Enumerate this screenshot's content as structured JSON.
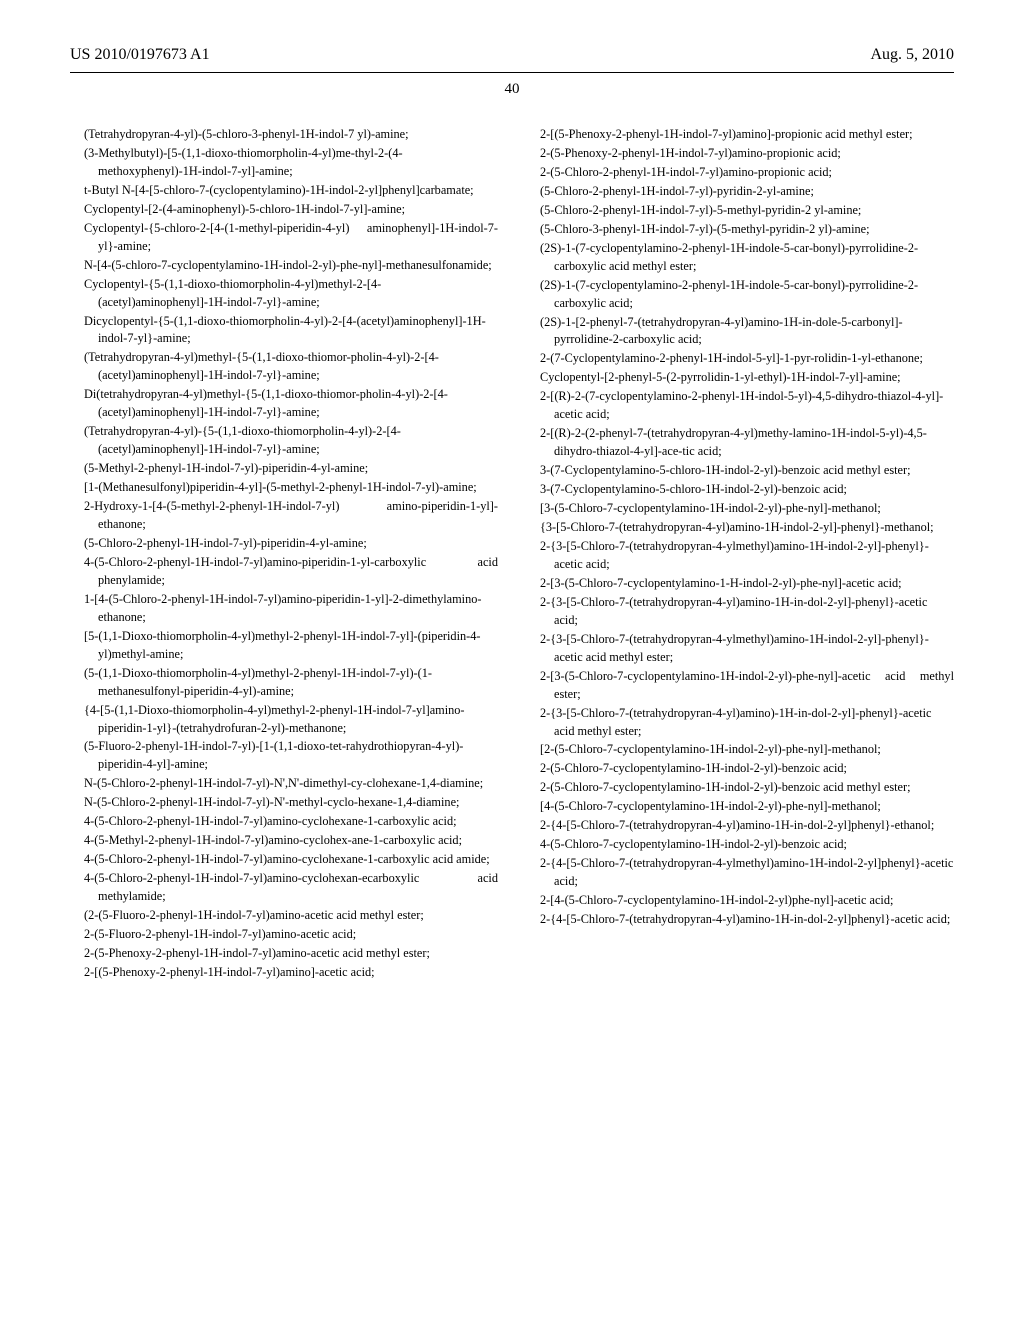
{
  "header": {
    "publication_number": "US 2010/0197673 A1",
    "date": "Aug. 5, 2010",
    "page_number": "40"
  },
  "columns": {
    "left": [
      "(Tetrahydropyran-4-yl)-(5-chloro-3-phenyl-1H-indol-7 yl)-amine;",
      "(3-Methylbutyl)-[5-(1,1-dioxo-thiomorpholin-4-yl)me-thyl-2-(4-methoxyphenyl)-1H-indol-7-yl]-amine;",
      "t-Butyl N-[4-[5-chloro-7-(cyclopentylamino)-1H-indol-2-yl]phenyl]carbamate;",
      "Cyclopentyl-[2-(4-aminophenyl)-5-chloro-1H-indol-7-yl]-amine;",
      "Cyclopentyl-{5-chloro-2-[4-(1-methyl-piperidin-4-yl) aminophenyl]-1H-indol-7-yl}-amine;",
      "N-[4-(5-chloro-7-cyclopentylamino-1H-indol-2-yl)-phe-nyl]-methanesulfonamide;",
      "Cyclopentyl-{5-(1,1-dioxo-thiomorpholin-4-yl)methyl-2-[4-(acetyl)aminophenyl]-1H-indol-7-yl}-amine;",
      "Dicyclopentyl-{5-(1,1-dioxo-thiomorpholin-4-yl)-2-[4-(acetyl)aminophenyl]-1H-indol-7-yl}-amine;",
      "(Tetrahydropyran-4-yl)methyl-{5-(1,1-dioxo-thiomor-pholin-4-yl)-2-[4-(acetyl)aminophenyl]-1H-indol-7-yl}-amine;",
      "Di(tetrahydropyran-4-yl)methyl-{5-(1,1-dioxo-thiomor-pholin-4-yl)-2-[4-(acetyl)aminophenyl]-1H-indol-7-yl}-amine;",
      "(Tetrahydropyran-4-yl)-{5-(1,1-dioxo-thiomorpholin-4-yl)-2-[4-(acetyl)aminophenyl]-1H-indol-7-yl}-amine;",
      "(5-Methyl-2-phenyl-1H-indol-7-yl)-piperidin-4-yl-amine;",
      "[1-(Methanesulfonyl)piperidin-4-yl]-(5-methyl-2-phenyl-1H-indol-7-yl)-amine;",
      "2-Hydroxy-1-[4-(5-methyl-2-phenyl-1H-indol-7-yl) amino-piperidin-1-yl]-ethanone;",
      "(5-Chloro-2-phenyl-1H-indol-7-yl)-piperidin-4-yl-amine;",
      "4-(5-Chloro-2-phenyl-1H-indol-7-yl)amino-piperidin-1-yl-carboxylic acid phenylamide;",
      "1-[4-(5-Chloro-2-phenyl-1H-indol-7-yl)amino-piperidin-1-yl]-2-dimethylamino-ethanone;",
      "[5-(1,1-Dioxo-thiomorpholin-4-yl)methyl-2-phenyl-1H-indol-7-yl]-(piperidin-4-yl)methyl-amine;",
      "(5-(1,1-Dioxo-thiomorpholin-4-yl)methyl-2-phenyl-1H-indol-7-yl)-(1-methanesulfonyl-piperidin-4-yl)-amine;",
      "{4-[5-(1,1-Dioxo-thiomorpholin-4-yl)methyl-2-phenyl-1H-indol-7-yl]amino-piperidin-1-yl}-(tetrahydrofuran-2-yl)-methanone;",
      "(5-Fluoro-2-phenyl-1H-indol-7-yl)-[1-(1,1-dioxo-tet-rahydrothiopyran-4-yl)-piperidin-4-yl]-amine;",
      "N-(5-Chloro-2-phenyl-1H-indol-7-yl)-N',N'-dimethyl-cy-clohexane-1,4-diamine;",
      "N-(5-Chloro-2-phenyl-1H-indol-7-yl)-N'-methyl-cyclo-hexane-1,4-diamine;",
      "4-(5-Chloro-2-phenyl-1H-indol-7-yl)amino-cyclohexane-1-carboxylic acid;",
      "4-(5-Methyl-2-phenyl-1H-indol-7-yl)amino-cyclohex-ane-1-carboxylic acid;",
      "4-(5-Chloro-2-phenyl-1H-indol-7-yl)amino-cyclohexane-1-carboxylic acid amide;",
      "4-(5-Chloro-2-phenyl-1H-indol-7-yl)amino-cyclohexan-ecarboxylic acid methylamide;",
      "(2-(5-Fluoro-2-phenyl-1H-indol-7-yl)amino-acetic acid methyl ester;",
      "2-(5-Fluoro-2-phenyl-1H-indol-7-yl)amino-acetic acid;",
      "2-(5-Phenoxy-2-phenyl-1H-indol-7-yl)amino-acetic acid methyl ester;",
      "2-[(5-Phenoxy-2-phenyl-1H-indol-7-yl)amino]-acetic acid;"
    ],
    "right": [
      "2-[(5-Phenoxy-2-phenyl-1H-indol-7-yl)amino]-propionic acid methyl ester;",
      "2-(5-Phenoxy-2-phenyl-1H-indol-7-yl)amino-propionic acid;",
      "2-(5-Chloro-2-phenyl-1H-indol-7-yl)amino-propionic acid;",
      "(5-Chloro-2-phenyl-1H-indol-7-yl)-pyridin-2-yl-amine;",
      "(5-Chloro-2-phenyl-1H-indol-7-yl)-5-methyl-pyridin-2 yl-amine;",
      "(5-Chloro-3-phenyl-1H-indol-7-yl)-(5-methyl-pyridin-2 yl)-amine;",
      "(2S)-1-(7-cyclopentylamino-2-phenyl-1H-indole-5-car-bonyl)-pyrrolidine-2-carboxylic acid methyl ester;",
      "(2S)-1-(7-cyclopentylamino-2-phenyl-1H-indole-5-car-bonyl)-pyrrolidine-2-carboxylic acid;",
      "(2S)-1-[2-phenyl-7-(tetrahydropyran-4-yl)amino-1H-in-dole-5-carbonyl]-pyrrolidine-2-carboxylic acid;",
      "2-(7-Cyclopentylamino-2-phenyl-1H-indol-5-yl]-1-pyr-rolidin-1-yl-ethanone;",
      "Cyclopentyl-[2-phenyl-5-(2-pyrrolidin-1-yl-ethyl)-1H-indol-7-yl]-amine;",
      "2-[(R)-2-(7-cyclopentylamino-2-phenyl-1H-indol-5-yl)-4,5-dihydro-thiazol-4-yl]-acetic acid;",
      "2-[(R)-2-(2-phenyl-7-(tetrahydropyran-4-yl)methy-lamino-1H-indol-5-yl)-4,5-dihydro-thiazol-4-yl]-ace-tic acid;",
      "3-(7-Cyclopentylamino-5-chloro-1H-indol-2-yl)-benzoic acid methyl ester;",
      "3-(7-Cyclopentylamino-5-chloro-1H-indol-2-yl)-benzoic acid;",
      "[3-(5-Chloro-7-cyclopentylamino-1H-indol-2-yl)-phe-nyl]-methanol;",
      "{3-[5-Chloro-7-(tetrahydropyran-4-yl)amino-1H-indol-2-yl]-phenyl}-methanol;",
      "2-{3-[5-Chloro-7-(tetrahydropyran-4-ylmethyl)amino-1H-indol-2-yl]-phenyl}-acetic acid;",
      "2-[3-(5-Chloro-7-cyclopentylamino-1-H-indol-2-yl)-phe-nyl]-acetic acid;",
      "2-{3-[5-Chloro-7-(tetrahydropyran-4-yl)amino-1H-in-dol-2-yl]-phenyl}-acetic acid;",
      "2-{3-[5-Chloro-7-(tetrahydropyran-4-ylmethyl)amino-1H-indol-2-yl]-phenyl}-acetic acid methyl ester;",
      "2-[3-(5-Chloro-7-cyclopentylamino-1H-indol-2-yl)-phe-nyl]-acetic acid methyl ester;",
      "2-{3-[5-Chloro-7-(tetrahydropyran-4-yl)amino)-1H-in-dol-2-yl]-phenyl}-acetic acid methyl ester;",
      "[2-(5-Chloro-7-cyclopentylamino-1H-indol-2-yl)-phe-nyl]-methanol;",
      "2-(5-Chloro-7-cyclopentylamino-1H-indol-2-yl)-benzoic acid;",
      "2-(5-Chloro-7-cyclopentylamino-1H-indol-2-yl)-benzoic acid methyl ester;",
      "[4-(5-Chloro-7-cyclopentylamino-1H-indol-2-yl)-phe-nyl]-methanol;",
      "2-{4-[5-Chloro-7-(tetrahydropyran-4-yl)amino-1H-in-dol-2-yl]phenyl}-ethanol;",
      "4-(5-Chloro-7-cyclopentylamino-1H-indol-2-yl)-benzoic acid;",
      "2-{4-[5-Chloro-7-(tetrahydropyran-4-ylmethyl)amino-1H-indol-2-yl]phenyl}-acetic acid;",
      "2-[4-(5-Chloro-7-cyclopentylamino-1H-indol-2-yl)phe-nyl]-acetic acid;",
      "2-{4-[5-Chloro-7-(tetrahydropyran-4-yl)amino-1H-in-dol-2-yl]phenyl}-acetic acid;"
    ]
  }
}
